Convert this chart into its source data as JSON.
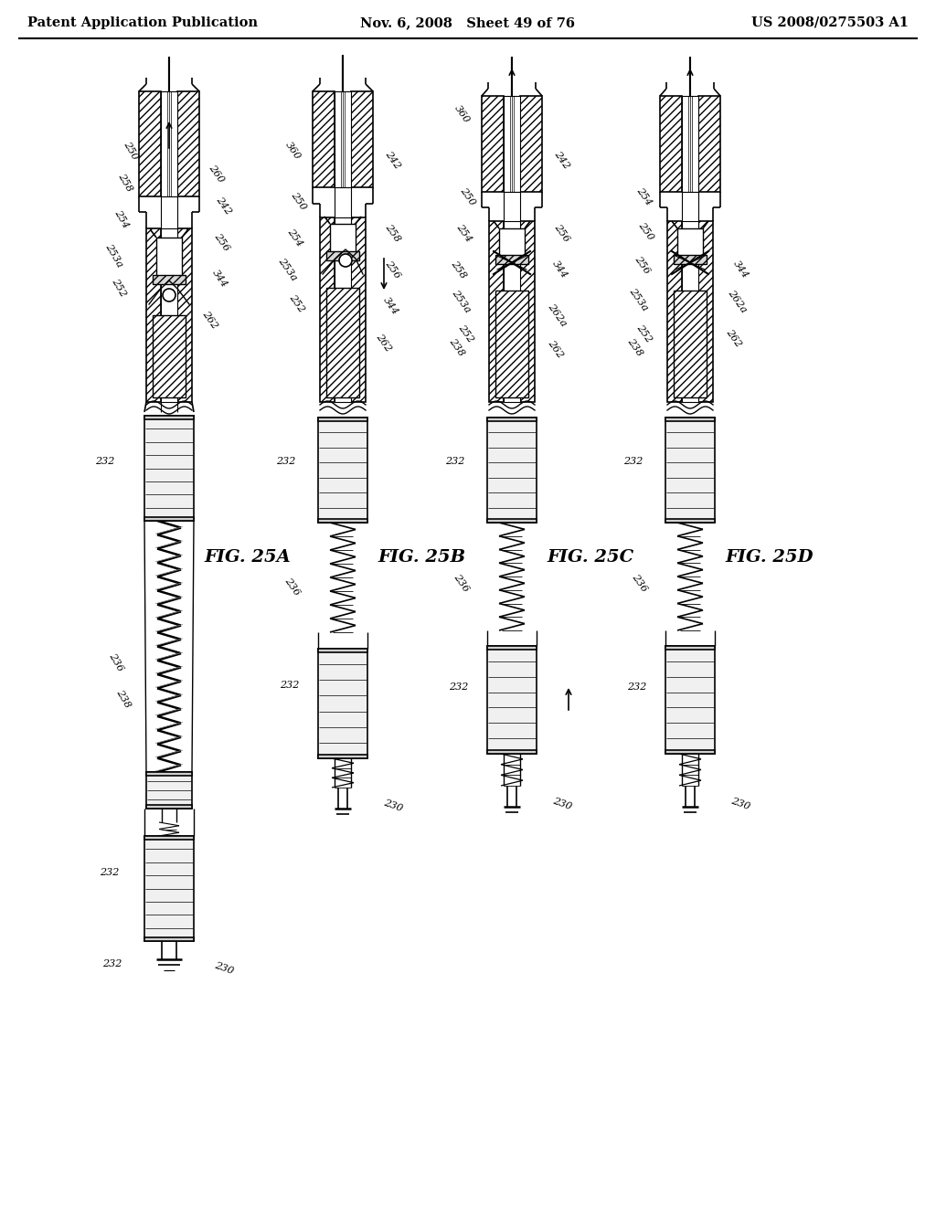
{
  "bg_color": "#ffffff",
  "header_left": "Patent Application Publication",
  "header_mid": "Nov. 6, 2008   Sheet 49 of 76",
  "header_right": "US 2008/0275503 A1",
  "fig_labels": [
    "FIG. 25A",
    "FIG. 25B",
    "FIG. 25C",
    "FIG. 25D"
  ],
  "fig_label_fontsize": 14,
  "header_fontsize": 10.5,
  "label_fontsize": 8.0,
  "line_color": "#000000"
}
